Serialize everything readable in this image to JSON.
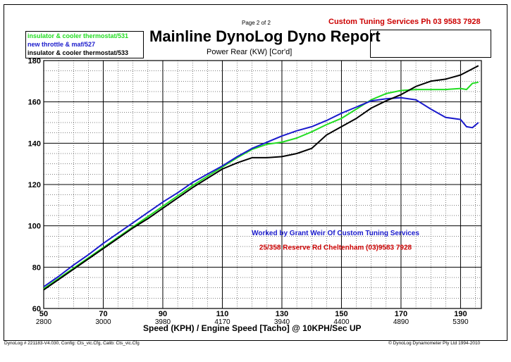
{
  "header": {
    "page_label": "Page 2 of 2",
    "company": "Custom Tuning Services  Ph 03 9583 7928"
  },
  "legend": [
    {
      "label": "insulator & cooler thermostat/531",
      "color": "#22dd22"
    },
    {
      "label": "new throttle & maf/527",
      "color": "#1a1acc"
    },
    {
      "label": "insulator & cooler thermostat/533",
      "color": "#000000"
    }
  ],
  "footer": {
    "left": "DynoLog # 221183-V4.030, Config: Cts_vic.Cfg, Calib: Cts_vic.Cfg",
    "right": "© DynoLog Dynamometer Pty Ltd 1994-2010"
  },
  "chart_data": {
    "type": "line",
    "title": "Mainline DynoLog Dyno Report",
    "subtitle": "Power Rear (KW) [Cor'd]",
    "xlabel": "Speed (KPH) / Engine Speed [Tacho] @ 10KPH/Sec UP",
    "ylabel": "",
    "xlim": [
      50,
      197
    ],
    "ylim": [
      60,
      180
    ],
    "grid": true,
    "yticks": [
      60,
      80,
      100,
      120,
      140,
      160,
      180
    ],
    "xticks": [
      {
        "speed": 50,
        "speed_label": "50",
        "rpm": "2800"
      },
      {
        "speed": 70,
        "speed_label": "70",
        "rpm": "3000"
      },
      {
        "speed": 90,
        "speed_label": "90",
        "rpm": "3980"
      },
      {
        "speed": 110,
        "speed_label": "110",
        "rpm": "4170"
      },
      {
        "speed": 130,
        "speed_label": "130",
        "rpm": "3940"
      },
      {
        "speed": 150,
        "speed_label": "150",
        "rpm": "4400"
      },
      {
        "speed": 170,
        "speed_label": "170",
        "rpm": "4890"
      },
      {
        "speed": 190,
        "speed_label": "190",
        "rpm": "5390"
      }
    ],
    "annotations": [
      {
        "text": "Worked by Grant Weir Of Custom Tuning Services",
        "color": "#1a1acc",
        "x": 148,
        "y": 95.5
      },
      {
        "text": "25/358 Reserve Rd Cheltenham (03)9583 7928",
        "color": "#cc0000",
        "x": 148,
        "y": 88.5
      }
    ],
    "series": [
      {
        "name": "insulator & cooler thermostat/531",
        "color": "#22dd22",
        "x": [
          50,
          55,
          60,
          65,
          70,
          75,
          80,
          85,
          90,
          95,
          100,
          105,
          110,
          115,
          120,
          125,
          130,
          135,
          140,
          145,
          150,
          155,
          160,
          165,
          170,
          175,
          180,
          185,
          190,
          192,
          194,
          196
        ],
        "y": [
          69.5,
          74.5,
          79.5,
          84.5,
          89.5,
          94.5,
          99.5,
          104.5,
          109.5,
          114.5,
          119.5,
          124,
          128.5,
          133,
          137,
          139.5,
          140.5,
          142.5,
          145.5,
          149,
          152,
          156.5,
          161,
          164,
          165.5,
          166,
          166,
          166,
          166.5,
          166,
          169,
          169.5
        ]
      },
      {
        "name": "new throttle & maf/527",
        "color": "#1a1acc",
        "x": [
          50,
          55,
          60,
          65,
          70,
          75,
          80,
          85,
          90,
          95,
          100,
          105,
          110,
          115,
          120,
          125,
          130,
          135,
          140,
          145,
          150,
          155,
          160,
          165,
          170,
          175,
          180,
          185,
          190,
          192,
          194,
          196
        ],
        "y": [
          70.5,
          75.5,
          81,
          86,
          91.5,
          96.5,
          101.5,
          106.5,
          111.5,
          116,
          121,
          125,
          129,
          133.5,
          137.5,
          140.5,
          143.5,
          146,
          148,
          151,
          154.5,
          157.5,
          160.5,
          161.5,
          162,
          161,
          156.5,
          152.5,
          151.5,
          148,
          147.5,
          150
        ]
      },
      {
        "name": "insulator & cooler thermostat/533",
        "color": "#000000",
        "x": [
          50,
          55,
          60,
          65,
          70,
          75,
          80,
          85,
          90,
          95,
          100,
          105,
          110,
          115,
          120,
          125,
          130,
          135,
          140,
          145,
          150,
          155,
          160,
          165,
          170,
          175,
          180,
          185,
          190,
          192,
          194,
          196
        ],
        "y": [
          69,
          74,
          79,
          84,
          89,
          94,
          99,
          103.5,
          108.5,
          113.5,
          118.5,
          123,
          127.5,
          130.5,
          133,
          133,
          133.5,
          135,
          137.5,
          144,
          148,
          152,
          157,
          160.5,
          163.5,
          167.5,
          170,
          171,
          173,
          174.5,
          176,
          177.5
        ]
      }
    ]
  }
}
